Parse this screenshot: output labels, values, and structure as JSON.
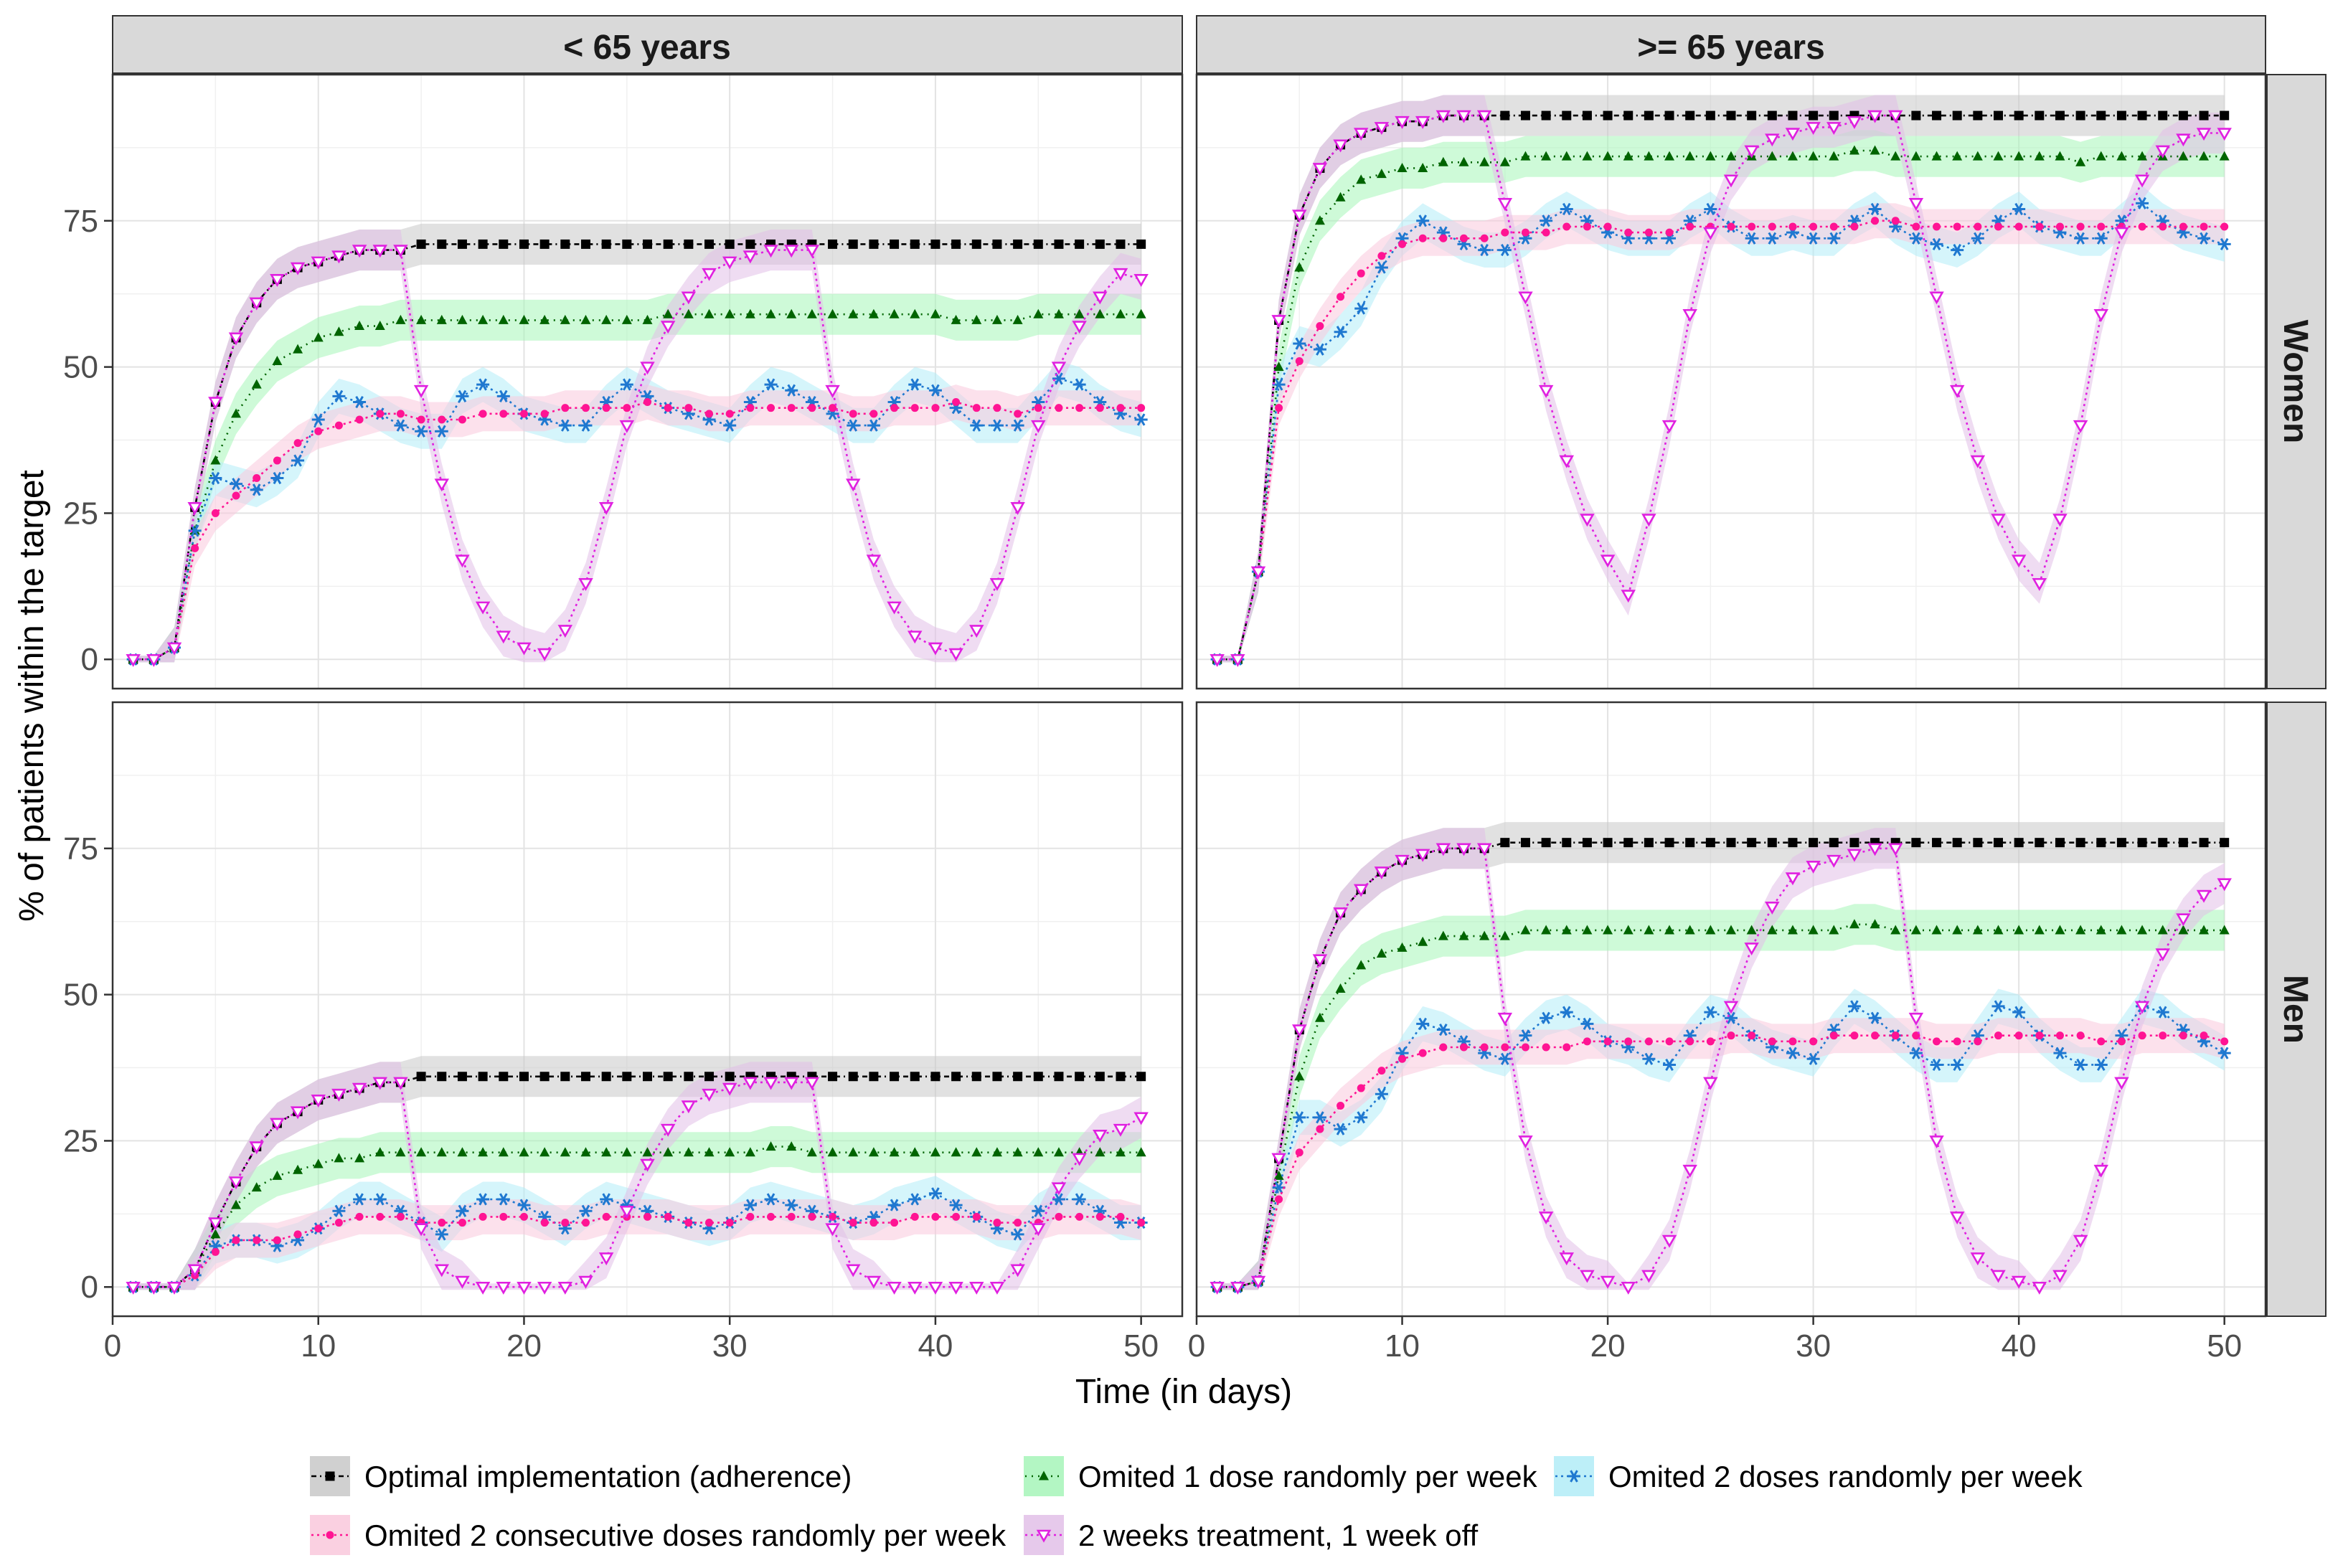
{
  "chart_data": {
    "type": "line",
    "facets": {
      "columns": [
        "< 65 years",
        ">= 65 years"
      ],
      "rows": [
        "Women",
        "Men"
      ]
    },
    "xlabel": "Time (in days)",
    "ylabel": "% of patients within the target",
    "xlim": [
      0,
      52
    ],
    "ylim": [
      -5,
      100
    ],
    "x_ticks": [
      0,
      10,
      20,
      30,
      40,
      50
    ],
    "y_ticks": [
      0,
      25,
      50,
      75
    ],
    "grid": true,
    "legend_position": "bottom",
    "series_meta": [
      {
        "key": "optimal",
        "name": "Optimal implementation (adherence)",
        "color": "#000000",
        "band_color": "#c8c8c8",
        "marker": "square"
      },
      {
        "key": "omit1",
        "name": "Omited 1 dose randomly per week",
        "color": "#006400",
        "band_color": "#a6f5b8",
        "marker": "triangle"
      },
      {
        "key": "omit2",
        "name": "Omited 2 doses randomly per week",
        "color": "#1f78d0",
        "band_color": "#b2ecf7",
        "marker": "asterisk"
      },
      {
        "key": "consec",
        "name": "Omited 2 consecutive doses randomly per week",
        "color": "#ff1493",
        "band_color": "#f9c8dc",
        "marker": "dot"
      },
      {
        "key": "twoweeks",
        "name": "2 weeks treatment, 1 week off",
        "color": "#e020e0",
        "band_color": "#e2bfe8",
        "marker": "triangle-down"
      }
    ],
    "panels": [
      {
        "row": "Women",
        "col": "< 65 years",
        "series": {
          "optimal": [
            0,
            0,
            2,
            26,
            44,
            55,
            61,
            65,
            67,
            68,
            69,
            70,
            70,
            70,
            71,
            71,
            71,
            71,
            71,
            71,
            71,
            71,
            71,
            71,
            71,
            71,
            71,
            71,
            71,
            71,
            71,
            71,
            71,
            71,
            71,
            71,
            71,
            71,
            71,
            71,
            71,
            71,
            71,
            71,
            71,
            71,
            71,
            71,
            71,
            71
          ],
          "omit1": [
            0,
            0,
            2,
            22,
            34,
            42,
            47,
            51,
            53,
            55,
            56,
            57,
            57,
            58,
            58,
            58,
            58,
            58,
            58,
            58,
            58,
            58,
            58,
            58,
            58,
            58,
            59,
            59,
            59,
            59,
            59,
            59,
            59,
            59,
            59,
            59,
            59,
            59,
            59,
            59,
            58,
            58,
            58,
            58,
            59,
            59,
            59,
            59,
            59,
            59
          ],
          "omit2": [
            0,
            0,
            2,
            22,
            31,
            30,
            29,
            31,
            34,
            41,
            45,
            44,
            42,
            40,
            39,
            39,
            45,
            47,
            45,
            42,
            41,
            40,
            40,
            44,
            47,
            45,
            43,
            42,
            41,
            40,
            44,
            47,
            46,
            44,
            42,
            40,
            40,
            44,
            47,
            46,
            43,
            40,
            40,
            40,
            44,
            48,
            47,
            44,
            42,
            41
          ],
          "consec": [
            0,
            0,
            2,
            19,
            25,
            28,
            31,
            34,
            37,
            39,
            40,
            41,
            42,
            42,
            41,
            41,
            41,
            42,
            42,
            42,
            42,
            43,
            43,
            43,
            43,
            44,
            43,
            43,
            42,
            42,
            43,
            43,
            43,
            43,
            43,
            42,
            42,
            43,
            43,
            43,
            44,
            43,
            43,
            42,
            43,
            43,
            43,
            43,
            43,
            43
          ],
          "twoweeks": [
            0,
            0,
            2,
            26,
            44,
            55,
            61,
            65,
            67,
            68,
            69,
            70,
            70,
            70,
            46,
            30,
            17,
            9,
            4,
            2,
            1,
            5,
            13,
            26,
            40,
            50,
            57,
            62,
            66,
            68,
            69,
            70,
            70,
            70,
            46,
            30,
            17,
            9,
            4,
            2,
            1,
            5,
            13,
            26,
            40,
            50,
            57,
            62,
            66,
            65
          ]
        }
      },
      {
        "row": "Women",
        "col": ">= 65 years",
        "series": {
          "optimal": [
            0,
            0,
            15,
            58,
            76,
            84,
            88,
            90,
            91,
            92,
            92,
            93,
            93,
            93,
            93,
            93,
            93,
            93,
            93,
            93,
            93,
            93,
            93,
            93,
            93,
            93,
            93,
            93,
            93,
            93,
            93,
            93,
            93,
            93,
            93,
            93,
            93,
            93,
            93,
            93,
            93,
            93,
            93,
            93,
            93,
            93,
            93,
            93,
            93,
            93
          ],
          "omit1": [
            0,
            0,
            15,
            50,
            67,
            75,
            79,
            82,
            83,
            84,
            84,
            85,
            85,
            85,
            85,
            86,
            86,
            86,
            86,
            86,
            86,
            86,
            86,
            86,
            86,
            86,
            86,
            86,
            86,
            86,
            86,
            87,
            87,
            86,
            86,
            86,
            86,
            86,
            86,
            86,
            86,
            86,
            85,
            86,
            86,
            86,
            86,
            86,
            86,
            86
          ],
          "omit2": [
            0,
            0,
            15,
            47,
            54,
            53,
            56,
            60,
            67,
            72,
            75,
            73,
            71,
            70,
            70,
            72,
            75,
            77,
            75,
            73,
            72,
            72,
            72,
            75,
            77,
            74,
            72,
            72,
            73,
            72,
            72,
            75,
            77,
            74,
            72,
            71,
            70,
            72,
            75,
            77,
            74,
            73,
            72,
            72,
            75,
            78,
            75,
            73,
            72,
            71
          ],
          "consec": [
            0,
            0,
            15,
            43,
            51,
            57,
            62,
            66,
            69,
            71,
            72,
            72,
            72,
            72,
            73,
            73,
            73,
            74,
            74,
            74,
            73,
            73,
            73,
            74,
            74,
            74,
            74,
            74,
            74,
            74,
            74,
            74,
            75,
            75,
            74,
            74,
            74,
            74,
            74,
            74,
            74,
            74,
            74,
            74,
            74,
            74,
            74,
            74,
            74,
            74
          ],
          "twoweeks": [
            0,
            0,
            15,
            58,
            76,
            84,
            88,
            90,
            91,
            92,
            92,
            93,
            93,
            93,
            78,
            62,
            46,
            34,
            24,
            17,
            11,
            24,
            40,
            59,
            73,
            82,
            87,
            89,
            90,
            91,
            91,
            92,
            93,
            93,
            78,
            62,
            46,
            34,
            24,
            17,
            13,
            24,
            40,
            59,
            73,
            82,
            87,
            89,
            90,
            90
          ]
        }
      },
      {
        "row": "Men",
        "col": "< 65 years",
        "series": {
          "optimal": [
            0,
            0,
            0,
            3,
            11,
            18,
            24,
            28,
            30,
            32,
            33,
            34,
            35,
            35,
            36,
            36,
            36,
            36,
            36,
            36,
            36,
            36,
            36,
            36,
            36,
            36,
            36,
            36,
            36,
            36,
            36,
            36,
            36,
            36,
            36,
            36,
            36,
            36,
            36,
            36,
            36,
            36,
            36,
            36,
            36,
            36,
            36,
            36,
            36,
            36
          ],
          "omit1": [
            0,
            0,
            0,
            3,
            9,
            14,
            17,
            19,
            20,
            21,
            22,
            22,
            23,
            23,
            23,
            23,
            23,
            23,
            23,
            23,
            23,
            23,
            23,
            23,
            23,
            23,
            23,
            23,
            23,
            23,
            23,
            24,
            24,
            23,
            23,
            23,
            23,
            23,
            23,
            23,
            23,
            23,
            23,
            23,
            23,
            23,
            23,
            23,
            23,
            23
          ],
          "omit2": [
            0,
            0,
            0,
            2,
            7,
            8,
            8,
            7,
            8,
            10,
            13,
            15,
            15,
            13,
            11,
            9,
            13,
            15,
            15,
            14,
            12,
            10,
            13,
            15,
            14,
            13,
            12,
            11,
            10,
            11,
            14,
            15,
            14,
            13,
            12,
            11,
            12,
            14,
            15,
            16,
            14,
            12,
            10,
            9,
            13,
            15,
            15,
            13,
            11,
            11
          ],
          "consec": [
            0,
            0,
            0,
            2,
            6,
            8,
            8,
            8,
            9,
            10,
            11,
            12,
            12,
            12,
            11,
            11,
            11,
            12,
            12,
            12,
            11,
            11,
            11,
            12,
            12,
            12,
            12,
            11,
            11,
            11,
            12,
            12,
            12,
            12,
            12,
            11,
            11,
            11,
            12,
            12,
            12,
            12,
            11,
            11,
            11,
            12,
            12,
            12,
            12,
            11
          ],
          "twoweeks": [
            0,
            0,
            0,
            3,
            11,
            18,
            24,
            28,
            30,
            32,
            33,
            34,
            35,
            35,
            10,
            3,
            1,
            0,
            0,
            0,
            0,
            0,
            1,
            5,
            13,
            21,
            27,
            31,
            33,
            34,
            35,
            35,
            35,
            35,
            10,
            3,
            1,
            0,
            0,
            0,
            0,
            0,
            0,
            3,
            10,
            17,
            22,
            26,
            27,
            29
          ]
        }
      },
      {
        "row": "Men",
        "col": ">= 65 years",
        "series": {
          "optimal": [
            0,
            0,
            1,
            22,
            44,
            56,
            64,
            68,
            71,
            73,
            74,
            75,
            75,
            75,
            76,
            76,
            76,
            76,
            76,
            76,
            76,
            76,
            76,
            76,
            76,
            76,
            76,
            76,
            76,
            76,
            76,
            76,
            76,
            76,
            76,
            76,
            76,
            76,
            76,
            76,
            76,
            76,
            76,
            76,
            76,
            76,
            76,
            76,
            76,
            76
          ],
          "omit1": [
            0,
            0,
            1,
            19,
            36,
            46,
            51,
            55,
            57,
            58,
            59,
            60,
            60,
            60,
            60,
            61,
            61,
            61,
            61,
            61,
            61,
            61,
            61,
            61,
            61,
            61,
            61,
            61,
            61,
            61,
            61,
            62,
            62,
            61,
            61,
            61,
            61,
            61,
            61,
            61,
            61,
            61,
            61,
            61,
            61,
            61,
            61,
            61,
            61,
            61
          ],
          "omit2": [
            0,
            0,
            1,
            17,
            29,
            29,
            27,
            29,
            33,
            40,
            45,
            44,
            42,
            40,
            39,
            43,
            46,
            47,
            45,
            42,
            41,
            39,
            38,
            43,
            47,
            46,
            43,
            41,
            40,
            39,
            44,
            48,
            46,
            43,
            40,
            38,
            38,
            43,
            48,
            47,
            43,
            40,
            38,
            38,
            43,
            48,
            47,
            44,
            42,
            40
          ],
          "consec": [
            0,
            0,
            1,
            15,
            23,
            27,
            31,
            34,
            37,
            39,
            40,
            41,
            41,
            41,
            41,
            41,
            41,
            41,
            42,
            42,
            42,
            42,
            42,
            42,
            42,
            43,
            43,
            42,
            42,
            42,
            43,
            43,
            43,
            43,
            43,
            42,
            42,
            42,
            43,
            43,
            43,
            43,
            43,
            42,
            42,
            43,
            43,
            43,
            43,
            42
          ],
          "twoweeks": [
            0,
            0,
            1,
            22,
            44,
            56,
            64,
            68,
            71,
            73,
            74,
            75,
            75,
            75,
            46,
            25,
            12,
            5,
            2,
            1,
            0,
            2,
            8,
            20,
            35,
            48,
            58,
            65,
            70,
            72,
            73,
            74,
            75,
            75,
            46,
            25,
            12,
            5,
            2,
            1,
            0,
            2,
            8,
            20,
            35,
            48,
            57,
            63,
            67,
            69
          ]
        }
      }
    ]
  }
}
